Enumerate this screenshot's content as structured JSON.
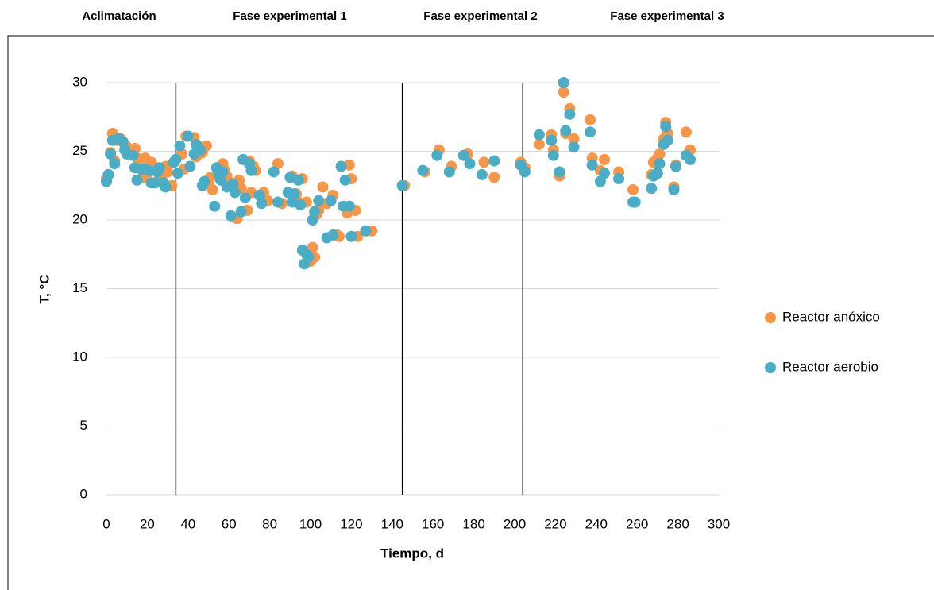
{
  "chart_data": {
    "type": "scatter",
    "phases": [
      "Aclimatación",
      "Fase experimental 1",
      "Fase experimental 2",
      "Fase experimental 3"
    ],
    "vlines": [
      34,
      145,
      204
    ],
    "xlabel": "Tiempo, d",
    "ylabel": "T, °C",
    "xlim": [
      0,
      300
    ],
    "xticks": [
      0,
      20,
      40,
      60,
      80,
      100,
      120,
      140,
      160,
      180,
      200,
      220,
      240,
      260,
      280,
      300
    ],
    "ylim": [
      0,
      30
    ],
    "yticks": [
      0,
      5,
      10,
      15,
      20,
      25,
      30
    ],
    "grid": true,
    "series": [
      {
        "name": "Reactor anóxico",
        "color": "#f79646",
        "x": [
          0,
          1,
          2,
          3,
          4,
          5,
          7,
          8,
          9,
          10,
          12,
          14,
          15,
          17,
          18,
          19,
          21,
          22,
          23,
          25,
          27,
          29,
          30,
          32,
          37,
          38,
          39,
          43,
          44,
          46,
          47,
          49,
          50,
          51,
          52,
          57,
          58,
          59,
          60,
          62,
          64,
          65,
          66,
          69,
          70,
          71,
          72,
          73,
          77,
          79,
          84,
          86,
          91,
          92,
          93,
          94,
          96,
          98,
          99,
          100,
          101,
          102,
          103,
          104,
          106,
          108,
          111,
          113,
          114,
          118,
          119,
          120,
          122,
          123,
          130,
          146,
          156,
          163,
          169,
          177,
          185,
          190,
          203,
          205,
          212,
          218,
          219,
          222,
          224,
          225,
          227,
          229,
          237,
          238,
          242,
          244,
          251,
          258,
          267,
          268,
          270,
          271,
          273,
          274,
          275,
          278,
          279,
          284,
          286
        ],
        "values": [
          23.0,
          23.3,
          24.9,
          26.3,
          24.3,
          25.8,
          25.9,
          25.7,
          25.5,
          25.3,
          24.9,
          25.2,
          24.5,
          24.0,
          23.1,
          24.5,
          23.5,
          24.2,
          23.9,
          22.8,
          23.0,
          23.9,
          23.5,
          22.5,
          24.8,
          23.7,
          26.1,
          26.0,
          24.6,
          25.3,
          24.9,
          25.4,
          22.7,
          23.1,
          22.2,
          24.1,
          23.6,
          23.2,
          22.8,
          22.5,
          20.1,
          22.9,
          22.3,
          20.7,
          24.3,
          22.0,
          23.9,
          23.6,
          22.0,
          21.4,
          24.1,
          21.2,
          23.2,
          21.7,
          21.9,
          21.3,
          23.0,
          21.3,
          17.6,
          17.0,
          18.0,
          17.3,
          20.4,
          20.7,
          22.4,
          21.2,
          21.8,
          18.9,
          18.8,
          20.5,
          24.0,
          23.0,
          20.7,
          18.8,
          19.2,
          22.5,
          23.5,
          25.1,
          23.9,
          24.8,
          24.2,
          23.1,
          24.2,
          23.8,
          25.5,
          26.2,
          25.1,
          23.2,
          29.3,
          26.3,
          28.1,
          25.9,
          27.3,
          24.5,
          23.6,
          24.4,
          23.5,
          22.2,
          23.3,
          24.2,
          24.5,
          24.8,
          25.9,
          27.1,
          26.3,
          22.4,
          24.0,
          26.4,
          25.1
        ]
      },
      {
        "name": "Reactor aerobio",
        "color": "#4bacc6",
        "x": [
          0,
          1,
          2,
          3,
          4,
          6,
          8,
          9,
          10,
          13,
          14,
          15,
          17,
          19,
          21,
          22,
          24,
          25,
          26,
          28,
          29,
          33,
          34,
          35,
          36,
          40,
          41,
          43,
          44,
          46,
          47,
          48,
          53,
          54,
          55,
          56,
          57,
          59,
          61,
          62,
          63,
          66,
          67,
          68,
          70,
          71,
          75,
          76,
          82,
          84,
          89,
          90,
          91,
          92,
          94,
          95,
          96,
          97,
          98,
          99,
          101,
          102,
          104,
          108,
          110,
          111,
          115,
          116,
          117,
          119,
          120,
          127,
          145,
          155,
          162,
          168,
          175,
          178,
          184,
          190,
          203,
          205,
          212,
          218,
          219,
          222,
          224,
          225,
          227,
          229,
          237,
          238,
          242,
          244,
          251,
          258,
          259,
          267,
          268,
          270,
          271,
          273,
          274,
          275,
          278,
          279,
          284,
          286
        ],
        "values": [
          22.8,
          23.3,
          24.8,
          25.8,
          24.1,
          25.9,
          25.7,
          25.1,
          24.8,
          24.7,
          23.8,
          22.9,
          23.7,
          23.7,
          23.6,
          22.7,
          22.7,
          23.5,
          23.8,
          22.7,
          22.4,
          24.2,
          24.4,
          23.4,
          25.4,
          26.1,
          23.9,
          24.8,
          25.5,
          25.1,
          22.5,
          22.8,
          21.0,
          23.8,
          23.3,
          22.9,
          23.5,
          22.4,
          20.3,
          22.6,
          22.0,
          20.6,
          24.4,
          21.6,
          24.1,
          23.6,
          21.8,
          21.2,
          23.5,
          21.3,
          22.0,
          23.1,
          21.3,
          21.9,
          22.9,
          21.1,
          17.8,
          16.8,
          17.5,
          17.3,
          20.0,
          20.6,
          21.4,
          18.7,
          21.4,
          18.9,
          23.9,
          21.0,
          22.9,
          21.0,
          18.8,
          19.2,
          22.5,
          23.6,
          24.7,
          23.5,
          24.7,
          24.1,
          23.3,
          24.3,
          24.0,
          23.5,
          26.2,
          25.8,
          24.7,
          23.5,
          30.0,
          26.5,
          27.7,
          25.3,
          26.4,
          24.0,
          22.8,
          23.4,
          23.0,
          21.3,
          21.3,
          22.3,
          23.2,
          23.4,
          24.1,
          25.5,
          26.8,
          25.8,
          22.2,
          23.9,
          24.7,
          24.4
        ]
      }
    ]
  }
}
